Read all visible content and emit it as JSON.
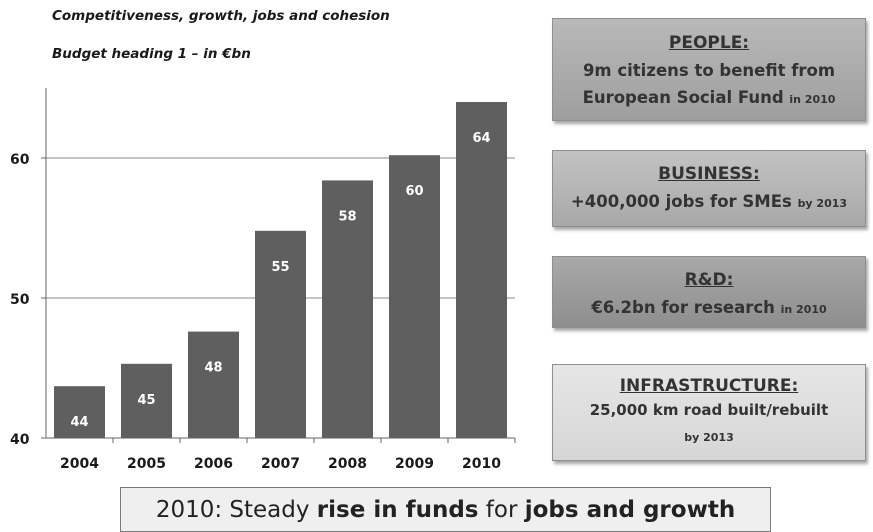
{
  "subtitles": {
    "line1": "Competitiveness, growth, jobs and cohesion",
    "line2": "Budget heading 1 – in €bn"
  },
  "chart_data": {
    "type": "bar",
    "title": "Competitiveness, growth, jobs and cohesion",
    "subtitle": "Budget heading 1 – in €bn",
    "categories": [
      "2004",
      "2005",
      "2006",
      "2007",
      "2008",
      "2009",
      "2010"
    ],
    "values": [
      43.7,
      45.3,
      47.6,
      54.8,
      58.4,
      60.2,
      64.0
    ],
    "labels": [
      "44",
      "45",
      "48",
      "55",
      "58",
      "60",
      "64"
    ],
    "ylim": [
      40,
      65
    ],
    "yticks": [
      40,
      50,
      60
    ],
    "xlabel": "",
    "ylabel": "",
    "grid": true,
    "bar_color": "#5f5f5f",
    "label_color": "#ffffff"
  },
  "boxes": {
    "people": {
      "heading": "PEOPLE:",
      "line1": "9m citizens to benefit from",
      "line2": "European Social Fund",
      "line2_small": "in 2010"
    },
    "business": {
      "heading": "BUSINESS:",
      "line1": "+400,000 jobs for SMEs",
      "line1_small": "by 2013"
    },
    "rd": {
      "heading": "R&D:",
      "line1": "€6.2bn for research",
      "line1_small": "in 2010"
    },
    "infrastructure": {
      "heading": "INFRASTRUCTURE:",
      "line1": "25,000 km road built/rebuilt",
      "line2_small": "by 2013"
    }
  },
  "banner": {
    "prefix": "2010: Steady ",
    "bold1": "rise in funds",
    "middle": " for ",
    "bold2": "jobs and growth"
  }
}
